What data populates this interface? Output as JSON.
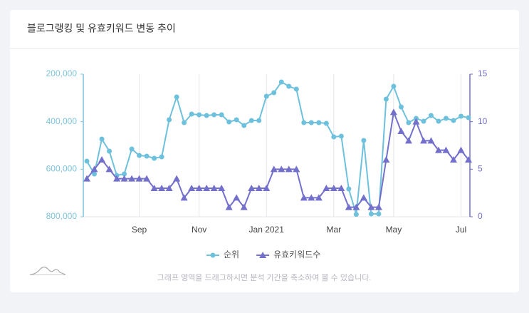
{
  "chart_data": {
    "type": "line",
    "title": "블로그랭킹 및 유효키워드 변동 추이",
    "categories": [
      null,
      null,
      null,
      null,
      null,
      null,
      null,
      "Sep",
      null,
      null,
      null,
      null,
      null,
      null,
      null,
      "Nov",
      null,
      null,
      null,
      null,
      null,
      null,
      null,
      null,
      "Jan 2021",
      null,
      null,
      null,
      null,
      null,
      null,
      null,
      null,
      "Mar",
      null,
      null,
      null,
      null,
      null,
      null,
      null,
      "May",
      null,
      null,
      null,
      null,
      null,
      null,
      null,
      null,
      "Jul",
      null
    ],
    "series": [
      {
        "name": "순위",
        "color": "#6ec1dc",
        "marker": "circle",
        "values": [
          566000,
          620000,
          473000,
          524000,
          626000,
          620000,
          515000,
          542000,
          545000,
          554000,
          548000,
          392000,
          296000,
          404000,
          368000,
          371000,
          374000,
          371000,
          371000,
          401000,
          392000,
          416000,
          395000,
          395000,
          293000,
          278000,
          233000,
          251000,
          263000,
          404000,
          404000,
          404000,
          407000,
          464000,
          461000,
          683000,
          790000,
          479000,
          788000,
          788000,
          305000,
          251000,
          338000,
          404000,
          386000,
          398000,
          374000,
          398000,
          386000,
          395000,
          377000,
          383000
        ]
      },
      {
        "name": "유효키워드수",
        "color": "#7370cc",
        "marker": "triangle",
        "axis": "y2",
        "values": [
          4,
          5,
          6,
          5,
          4,
          4,
          4,
          4,
          4,
          3,
          3,
          3,
          4,
          2,
          3,
          3,
          3,
          3,
          3,
          1,
          2,
          1,
          3,
          3,
          3,
          5,
          5,
          5,
          5,
          2,
          2,
          2,
          3,
          3,
          3,
          1,
          1,
          2,
          1,
          1,
          6,
          11,
          9,
          8,
          10,
          8,
          8,
          7,
          7,
          6,
          7,
          6
        ]
      }
    ],
    "ylim": [
      800000,
      200000
    ],
    "yticks": [
      {
        "value": 200000,
        "label": "200,000"
      },
      {
        "value": 400000,
        "label": "400,000"
      },
      {
        "value": 600000,
        "label": "600,000"
      },
      {
        "value": 800000,
        "label": "800,000"
      }
    ],
    "y2lim": [
      0,
      15
    ],
    "y2ticks": [
      0,
      5,
      10,
      15
    ],
    "grid": true
  },
  "note": "그래프 영역을 드래그하시면 분석 기간을 축소하여 볼 수 있습니다."
}
